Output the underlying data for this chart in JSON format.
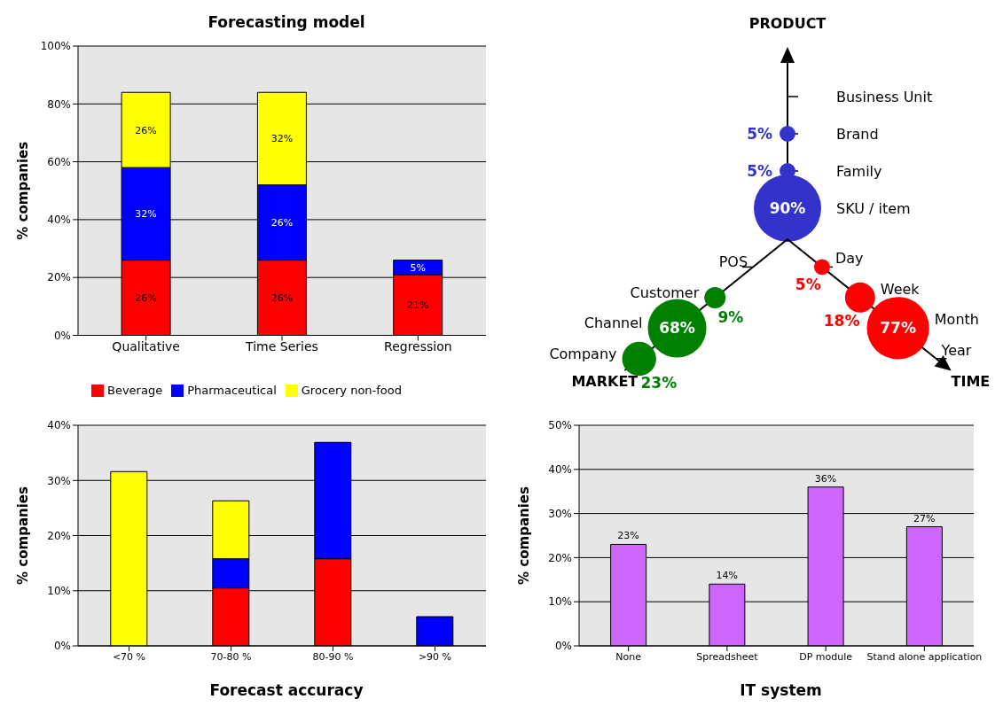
{
  "chart_data": [
    {
      "type": "bar",
      "title": "Forecasting model",
      "ylabel": "% companies",
      "categories": [
        "Qualitative",
        "Time Series",
        "Regression"
      ],
      "stacked": true,
      "series": [
        {
          "name": "Beverage",
          "color": "#ff0000",
          "values": [
            26,
            26,
            21
          ],
          "value_labels": [
            "26%",
            "26%",
            "21%"
          ]
        },
        {
          "name": "Pharmaceutical",
          "color": "#0000ff",
          "values": [
            32,
            26,
            5
          ],
          "value_labels": [
            "32%",
            "26%",
            "5%"
          ]
        },
        {
          "name": "Grocery non-food",
          "color": "#ffff00",
          "values": [
            26,
            32,
            null
          ],
          "value_labels": [
            "26%",
            "32%",
            null
          ]
        }
      ],
      "ylim": [
        0,
        100
      ],
      "yticks": [
        {
          "value": 0,
          "label": "0%"
        },
        {
          "value": 20,
          "label": "20%"
        },
        {
          "value": 40,
          "label": "40%"
        },
        {
          "value": 60,
          "label": "60%"
        },
        {
          "value": 80,
          "label": "80%"
        },
        {
          "value": 100,
          "label": "100%"
        }
      ],
      "grid": "y",
      "legend": "bottom"
    },
    {
      "type": "other",
      "annotations": [
        "PRODUCT",
        "MARKET",
        "TIME"
      ],
      "categories": [
        "SKU / item",
        "Family",
        "Brand",
        "Business Unit",
        "POS",
        "Customer",
        "Channel",
        "Company",
        "Day",
        "Week",
        "Month",
        "Year"
      ],
      "series": [
        {
          "color": "#3333cc",
          "values": [
            90,
            5,
            5,
            null,
            null,
            null,
            null,
            null,
            null,
            null,
            null,
            null
          ],
          "value_labels": [
            "90%",
            "5%",
            "5%",
            null,
            null,
            null,
            null,
            null,
            null,
            null,
            null,
            null
          ]
        },
        {
          "color": "#008000",
          "values": [
            null,
            null,
            null,
            null,
            null,
            9,
            68,
            23,
            null,
            null,
            null,
            null
          ],
          "value_labels": [
            null,
            null,
            null,
            null,
            null,
            "9%",
            "68%",
            "23%",
            null,
            null,
            null,
            null
          ]
        },
        {
          "color": "#ff0000",
          "values": [
            null,
            null,
            null,
            null,
            null,
            null,
            null,
            null,
            5,
            18,
            77,
            null
          ],
          "value_labels": [
            null,
            null,
            null,
            null,
            null,
            null,
            null,
            null,
            "5%",
            "18%",
            "77%",
            null
          ]
        }
      ]
    },
    {
      "type": "bar",
      "xlabel": "Forecast accuracy",
      "ylabel": "% companies",
      "categories": [
        "<70 %",
        "70-80 %",
        "80-90 %",
        ">90 %"
      ],
      "stacked": true,
      "series": [
        {
          "color": "#ff0000",
          "values": [
            null,
            10.5,
            15.8,
            null
          ]
        },
        {
          "color": "#0000ff",
          "values": [
            null,
            5.3,
            21.1,
            5.3
          ]
        },
        {
          "color": "#ffff00",
          "values": [
            31.6,
            10.5,
            null,
            null
          ]
        }
      ],
      "ylim": [
        0,
        40
      ],
      "yticks": [
        {
          "value": 0,
          "label": "0%"
        },
        {
          "value": 10,
          "label": "10%"
        },
        {
          "value": 20,
          "label": "20%"
        },
        {
          "value": 30,
          "label": "30%"
        },
        {
          "value": 40,
          "label": "40%"
        }
      ],
      "grid": "y"
    },
    {
      "type": "bar",
      "xlabel": "IT system",
      "ylabel": "% companies",
      "categories": [
        "None",
        "Spreadsheet",
        "DP module",
        "Stand alone application"
      ],
      "color": "#cc66ff",
      "values": [
        23,
        14,
        36,
        27
      ],
      "value_labels": [
        "23%",
        "14%",
        "36%",
        "27%"
      ],
      "ylim": [
        0,
        50
      ],
      "yticks": [
        {
          "value": 0,
          "label": "0%"
        },
        {
          "value": 10,
          "label": "10%"
        },
        {
          "value": 20,
          "label": "20%"
        },
        {
          "value": 30,
          "label": "30%"
        },
        {
          "value": 40,
          "label": "40%"
        },
        {
          "value": 50,
          "label": "50%"
        }
      ],
      "grid": "y"
    }
  ]
}
